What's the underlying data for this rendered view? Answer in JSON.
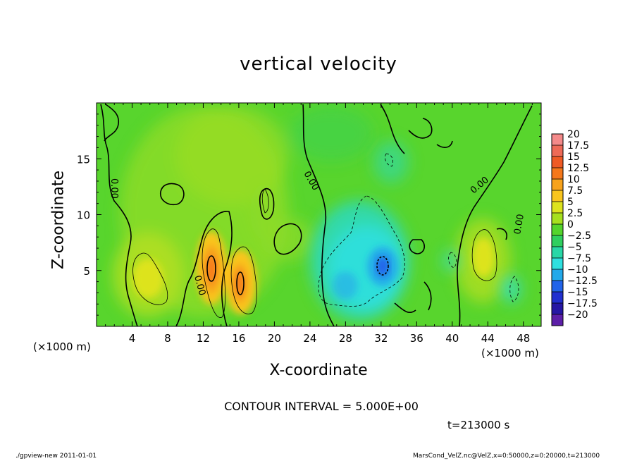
{
  "chart_data": {
    "type": "contour",
    "title": "vertical velocity",
    "xlabel": "X-coordinate",
    "ylabel": "Z-coordinate",
    "x_unit_label": "(×1000 m)",
    "xlim": [
      0,
      50
    ],
    "ylim": [
      0,
      20
    ],
    "x_ticks": [
      4,
      8,
      12,
      16,
      20,
      24,
      28,
      32,
      36,
      40,
      44,
      48
    ],
    "y_ticks": [
      5,
      10,
      15
    ],
    "contour_interval_text": "CONTOUR INTERVAL = 5.000E+00",
    "time_text": "t=213000 s",
    "contour_labels": [
      "0.00",
      "0.00",
      "0.00",
      "0.00",
      "0.00"
    ],
    "colorbar_levels": [
      "20",
      "17.5",
      "15",
      "12.5",
      "10",
      "7.5",
      "5",
      "2.5",
      "0",
      "−2.5",
      "−5",
      "−7.5",
      "−10",
      "−12.5",
      "−15",
      "−17.5",
      "−20"
    ],
    "colorbar_colors": [
      "#f48a8a",
      "#ee6a57",
      "#ef5a25",
      "#f5781b",
      "#f7a21b",
      "#f9c51e",
      "#dde31e",
      "#a6e01f",
      "#54d42c",
      "#2fcf5f",
      "#28d7a7",
      "#2ee0e0",
      "#23a9ea",
      "#2264ea",
      "#2230cf",
      "#2617a4",
      "#5d1fa8"
    ],
    "features": [
      {
        "kind": "updraft",
        "x": 13.2,
        "z": 5.2,
        "peak": 12.5
      },
      {
        "kind": "updraft",
        "x": 16.2,
        "z": 4.0,
        "peak": 12.5
      },
      {
        "kind": "updraft",
        "x": 5.5,
        "z": 4.2,
        "peak": 5
      },
      {
        "kind": "updraft",
        "x": 43.3,
        "z": 6.0,
        "peak": 5
      },
      {
        "kind": "downdraft",
        "x": 32.0,
        "z": 5.5,
        "peak": -12.5
      },
      {
        "kind": "downdraft",
        "x": 29.5,
        "z": 6.0,
        "peak": -7.5
      }
    ]
  },
  "footer": {
    "left": "./gpview-new   2011-01-01",
    "right": "MarsCond_VelZ.nc@VelZ,x=0:50000,z=0:20000,t=213000"
  }
}
